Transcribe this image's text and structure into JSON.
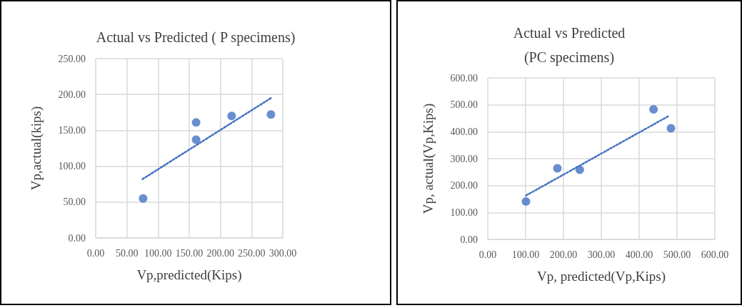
{
  "chart_data": [
    {
      "type": "scatter",
      "title": "Actual vs Predicted ( P specimens)",
      "xlabel": "Vp,predicted(Kips)",
      "ylabel": "Vp,actual(kips)",
      "marker": "circle",
      "grid": true,
      "xlim": [
        0,
        300
      ],
      "xticks": [
        {
          "value": 0,
          "label": "0.00"
        },
        {
          "value": 50,
          "label": "50.00"
        },
        {
          "value": 100,
          "label": "100.00"
        },
        {
          "value": 150,
          "label": "150.00"
        },
        {
          "value": 200,
          "label": "200.00"
        },
        {
          "value": 250,
          "label": "250.00"
        },
        {
          "value": 300,
          "label": "300.00"
        }
      ],
      "ylim": [
        0,
        250
      ],
      "yticks": [
        {
          "value": 0,
          "label": "0.00"
        },
        {
          "value": 50,
          "label": "50.00"
        },
        {
          "value": 100,
          "label": "100.00"
        },
        {
          "value": 150,
          "label": "150.00"
        },
        {
          "value": 200,
          "label": "200.00"
        },
        {
          "value": 250,
          "label": "250.00"
        }
      ],
      "series": [
        {
          "color": "#4472c4",
          "x": [
            76,
            161,
            161,
            218,
            281
          ],
          "values": [
            55,
            161,
            137,
            170,
            172
          ]
        },
        {
          "type": "line",
          "color": "#4472c4",
          "line_style": "dotted",
          "marker": "none",
          "x": [
            75,
            281
          ],
          "values": [
            82,
            195
          ]
        }
      ]
    },
    {
      "type": "scatter",
      "title": "Actual vs Predicted\n(PC specimens)",
      "xlabel": "Vp, predicted(Vp,Kips)",
      "ylabel": "Vp, actual(Vp,Kips)",
      "marker": "circle",
      "grid": true,
      "xlim": [
        0,
        600
      ],
      "xticks": [
        {
          "value": 0,
          "label": "0.00"
        },
        {
          "value": 100,
          "label": "100.00"
        },
        {
          "value": 200,
          "label": "200.00"
        },
        {
          "value": 300,
          "label": "300.00"
        },
        {
          "value": 400,
          "label": "400.00"
        },
        {
          "value": 500,
          "label": "500.00"
        },
        {
          "value": 600,
          "label": "600.00"
        }
      ],
      "ylim": [
        0,
        600
      ],
      "yticks": [
        {
          "value": 0,
          "label": "0.00"
        },
        {
          "value": 100,
          "label": "100.00"
        },
        {
          "value": 200,
          "label": "200.00"
        },
        {
          "value": 300,
          "label": "300.00"
        },
        {
          "value": 400,
          "label": "400.00"
        },
        {
          "value": 500,
          "label": "500.00"
        },
        {
          "value": 600,
          "label": "600.00"
        }
      ],
      "series": [
        {
          "color": "#4472c4",
          "x": [
            101,
            184,
            243,
            438,
            484
          ],
          "values": [
            141,
            264,
            259,
            483,
            413
          ]
        },
        {
          "type": "line",
          "color": "#4472c4",
          "line_style": "dotted",
          "marker": "none",
          "x": [
            101,
            480
          ],
          "values": [
            163,
            460
          ]
        }
      ]
    }
  ]
}
